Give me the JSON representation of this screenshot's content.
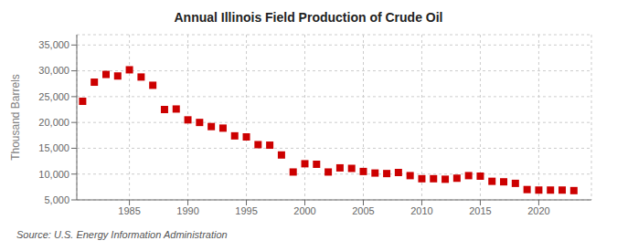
{
  "chart_data": {
    "type": "scatter",
    "title": "Annual Illinois Field Production of Crude Oil",
    "ylabel": "Thousand Barrels",
    "annotations": [
      "Source: U.S. Energy Information Administration"
    ],
    "color": "#cc0000",
    "marker": "square",
    "grid": true,
    "xlim": [
      1980.5,
      2024.5
    ],
    "xticks": [
      1985,
      1990,
      1995,
      2000,
      2005,
      2010,
      2015,
      2020
    ],
    "ylim": [
      5000,
      37000
    ],
    "yticks": [
      {
        "value": 5000,
        "label": "5,000"
      },
      {
        "value": 10000,
        "label": "10,000"
      },
      {
        "value": 15000,
        "label": "15,000"
      },
      {
        "value": 20000,
        "label": "20,000"
      },
      {
        "value": 25000,
        "label": "25,000"
      },
      {
        "value": 30000,
        "label": "30,000"
      },
      {
        "value": 35000,
        "label": "35,000"
      }
    ],
    "x": [
      1981,
      1982,
      1983,
      1984,
      1985,
      1986,
      1987,
      1988,
      1989,
      1990,
      1991,
      1992,
      1993,
      1994,
      1995,
      1996,
      1997,
      1998,
      1999,
      2000,
      2001,
      2002,
      2003,
      2004,
      2005,
      2006,
      2007,
      2008,
      2009,
      2010,
      2011,
      2012,
      2013,
      2014,
      2015,
      2016,
      2017,
      2018,
      2019,
      2020,
      2021,
      2022,
      2023
    ],
    "values": [
      24100,
      27800,
      29300,
      29000,
      30200,
      28800,
      27200,
      22500,
      22600,
      20500,
      20000,
      19200,
      18900,
      17400,
      17200,
      15700,
      15600,
      13700,
      10400,
      12000,
      11900,
      10400,
      11200,
      11100,
      10500,
      10200,
      10100,
      10300,
      9700,
      9100,
      9100,
      9000,
      9200,
      9700,
      9600,
      8600,
      8500,
      8200,
      7000,
      6900,
      6900,
      6900,
      6800
    ]
  }
}
